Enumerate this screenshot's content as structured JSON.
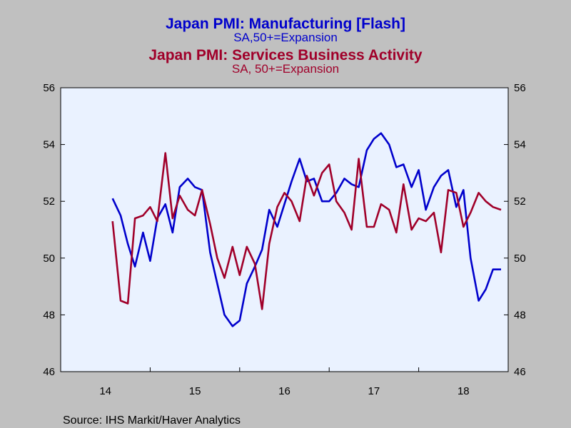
{
  "chart_data": {
    "type": "line",
    "title_manufacturing": "Japan PMI: Manufacturing [Flash]",
    "subtitle_manufacturing": "SA,50+=Expansion",
    "title_services": "Japan PMI: Services Business Activity",
    "subtitle_services": "SA, 50+=Expansion",
    "source": "Source:  IHS Markit/Haver Analytics",
    "x_tick_labels": [
      "14",
      "15",
      "16",
      "17",
      "18"
    ],
    "x_range": [
      2014.0,
      2019.0
    ],
    "ylim": [
      46,
      56
    ],
    "y_ticks": [
      46,
      48,
      50,
      52,
      54,
      56
    ],
    "colors": {
      "manufacturing": "#0000cc",
      "services": "#a0002a",
      "background": "#c0c0c0",
      "plot_area": "#eaf2ff"
    },
    "grid": false,
    "series": [
      {
        "name": "Japan PMI: Manufacturing [Flash]",
        "color": "#0000cc",
        "x": [
          2014.58,
          2014.67,
          2014.75,
          2014.83,
          2014.92,
          2015.0,
          2015.08,
          2015.17,
          2015.25,
          2015.33,
          2015.42,
          2015.5,
          2015.58,
          2015.67,
          2015.75,
          2015.83,
          2015.92,
          2016.0,
          2016.08,
          2016.17,
          2016.25,
          2016.33,
          2016.42,
          2016.5,
          2016.58,
          2016.67,
          2016.75,
          2016.83,
          2016.92,
          2017.0,
          2017.08,
          2017.17,
          2017.25,
          2017.33,
          2017.42,
          2017.5,
          2017.58,
          2017.67,
          2017.75,
          2017.83,
          2017.92,
          2018.0,
          2018.08,
          2018.17,
          2018.25,
          2018.33,
          2018.42,
          2018.5,
          2018.58,
          2018.67,
          2018.75,
          2018.83,
          2018.92
        ],
        "values": [
          52.1,
          51.5,
          50.5,
          49.7,
          50.9,
          49.9,
          51.4,
          51.9,
          50.9,
          52.5,
          52.8,
          52.5,
          52.4,
          50.2,
          49.1,
          48.0,
          47.6,
          47.8,
          49.1,
          49.7,
          50.3,
          51.7,
          51.1,
          51.9,
          52.7,
          53.5,
          52.7,
          52.8,
          52.0,
          52.0,
          52.3,
          52.8,
          52.6,
          52.5,
          53.8,
          54.2,
          54.4,
          54.0,
          53.2,
          53.3,
          52.5,
          53.1,
          51.7,
          52.5,
          52.9,
          53.1,
          51.8,
          52.4,
          50.0,
          48.5,
          48.9,
          49.6,
          49.6
        ]
      },
      {
        "name": "Japan PMI: Services Business Activity",
        "color": "#a0002a",
        "x": [
          2014.58,
          2014.67,
          2014.75,
          2014.83,
          2014.92,
          2015.0,
          2015.08,
          2015.17,
          2015.25,
          2015.33,
          2015.42,
          2015.5,
          2015.58,
          2015.67,
          2015.75,
          2015.83,
          2015.92,
          2016.0,
          2016.08,
          2016.17,
          2016.25,
          2016.33,
          2016.42,
          2016.5,
          2016.58,
          2016.67,
          2016.75,
          2016.83,
          2016.92,
          2017.0,
          2017.08,
          2017.17,
          2017.25,
          2017.33,
          2017.42,
          2017.5,
          2017.58,
          2017.67,
          2017.75,
          2017.83,
          2017.92,
          2018.0,
          2018.08,
          2018.17,
          2018.25,
          2018.33,
          2018.42,
          2018.5,
          2018.58,
          2018.67,
          2018.75,
          2018.83,
          2018.92
        ],
        "values": [
          51.3,
          48.5,
          48.4,
          51.4,
          51.5,
          51.8,
          51.3,
          53.7,
          51.4,
          52.2,
          51.7,
          51.5,
          52.4,
          51.2,
          50.0,
          49.3,
          50.4,
          49.4,
          50.4,
          49.8,
          48.2,
          50.5,
          51.8,
          52.3,
          52.0,
          51.3,
          52.9,
          52.2,
          53.0,
          53.3,
          52.0,
          51.6,
          51.0,
          53.5,
          51.1,
          51.1,
          51.9,
          51.7,
          50.9,
          52.6,
          51.0,
          51.4,
          51.3,
          51.6,
          50.2,
          52.4,
          52.3,
          51.1,
          51.6,
          52.3,
          52.0,
          51.8,
          51.7
        ]
      }
    ]
  }
}
